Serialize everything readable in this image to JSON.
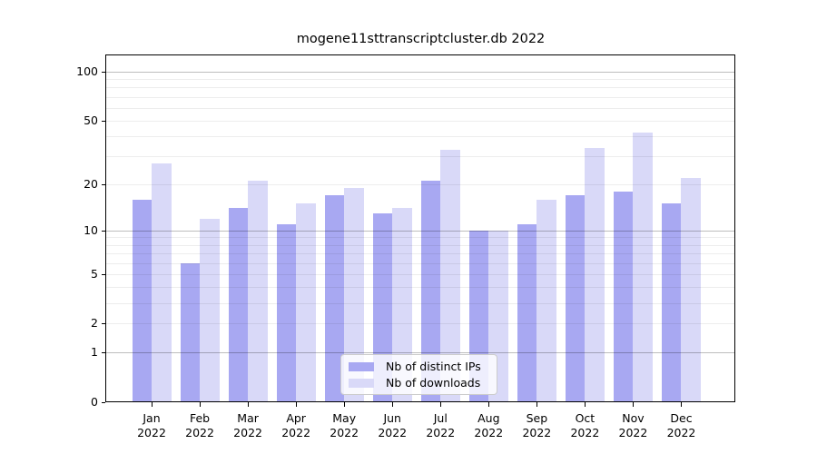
{
  "chart_data": {
    "type": "bar",
    "title": "mogene11sttranscriptcluster.db 2022",
    "categories": [
      "Jan 2022",
      "Feb 2022",
      "Mar 2022",
      "Apr 2022",
      "May 2022",
      "Jun 2022",
      "Jul 2022",
      "Aug 2022",
      "Sep 2022",
      "Oct 2022",
      "Nov 2022",
      "Dec 2022"
    ],
    "x_tick_months": [
      "Jan",
      "Feb",
      "Mar",
      "Apr",
      "May",
      "Jun",
      "Jul",
      "Aug",
      "Sep",
      "Oct",
      "Nov",
      "Dec"
    ],
    "x_tick_year": "2022",
    "series": [
      {
        "name": "Nb of distinct IPs",
        "color": "#a8a8f2",
        "values": [
          16,
          6,
          14,
          11,
          17,
          13,
          21,
          10,
          11,
          17,
          18,
          15
        ]
      },
      {
        "name": "Nb of downloads",
        "color": "#d9d9f8",
        "values": [
          27,
          12,
          21,
          15,
          19,
          14,
          33,
          10,
          16,
          34,
          42,
          22
        ]
      }
    ],
    "y_axis": {
      "scale": "log10(1+value)",
      "tick_values": [
        0,
        1,
        2,
        5,
        10,
        20,
        50,
        100
      ],
      "tick_labels": [
        "0",
        "1",
        "2",
        "5",
        "10",
        "20",
        "50",
        "100"
      ],
      "minor_gridlines": [
        2,
        3,
        4,
        5,
        6,
        7,
        8,
        9,
        20,
        30,
        40,
        50,
        60,
        70,
        80,
        90
      ],
      "major_gridlines": [
        1,
        10,
        100
      ],
      "ylim": [
        0,
        128
      ]
    },
    "legend": {
      "position": "lower center"
    },
    "grid": "horizontal, drawn over bars"
  }
}
